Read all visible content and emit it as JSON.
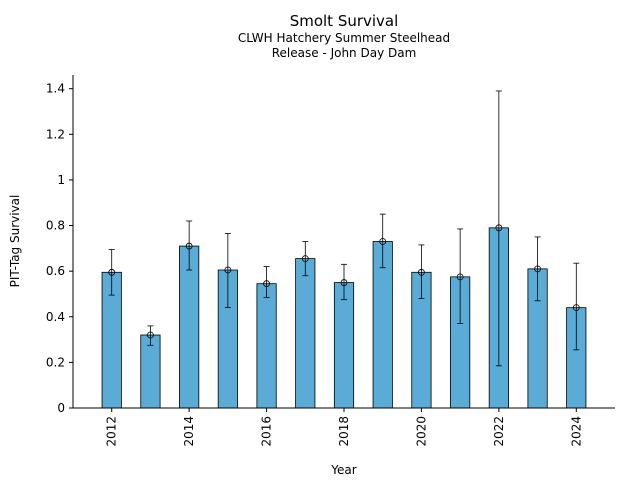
{
  "chart_data": {
    "type": "bar",
    "title": "Smolt Survival",
    "subtitle_lines": [
      "CLWH Hatchery Summer Steelhead",
      "Release - John Day Dam"
    ],
    "xlabel": "Year",
    "ylabel": "PIT-Tag Survival",
    "x_ticks": [
      "2012",
      "2014",
      "2016",
      "2018",
      "2020",
      "2022",
      "2024"
    ],
    "y_ticks": [
      "0",
      "0.2",
      "0.4",
      "0.6",
      "0.8",
      "1",
      "1.2",
      "1.4"
    ],
    "ylim": [
      0,
      1.46
    ],
    "xlim": [
      2011,
      2025
    ],
    "grid": false,
    "bar_color": "#5aabd5",
    "series": [
      {
        "x": [
          2012,
          2013,
          2014,
          2015,
          2016,
          2017,
          2018,
          2019,
          2020,
          2021,
          2022,
          2023,
          2024
        ],
        "values": [
          0.595,
          0.32,
          0.71,
          0.605,
          0.545,
          0.655,
          0.55,
          0.73,
          0.595,
          0.575,
          0.79,
          0.61,
          0.44
        ],
        "err_low": [
          0.495,
          0.275,
          0.605,
          0.44,
          0.485,
          0.58,
          0.475,
          0.615,
          0.48,
          0.37,
          0.185,
          0.47,
          0.255
        ],
        "err_high": [
          0.695,
          0.36,
          0.82,
          0.765,
          0.62,
          0.73,
          0.63,
          0.85,
          0.715,
          0.785,
          1.39,
          0.75,
          0.635
        ]
      }
    ]
  }
}
